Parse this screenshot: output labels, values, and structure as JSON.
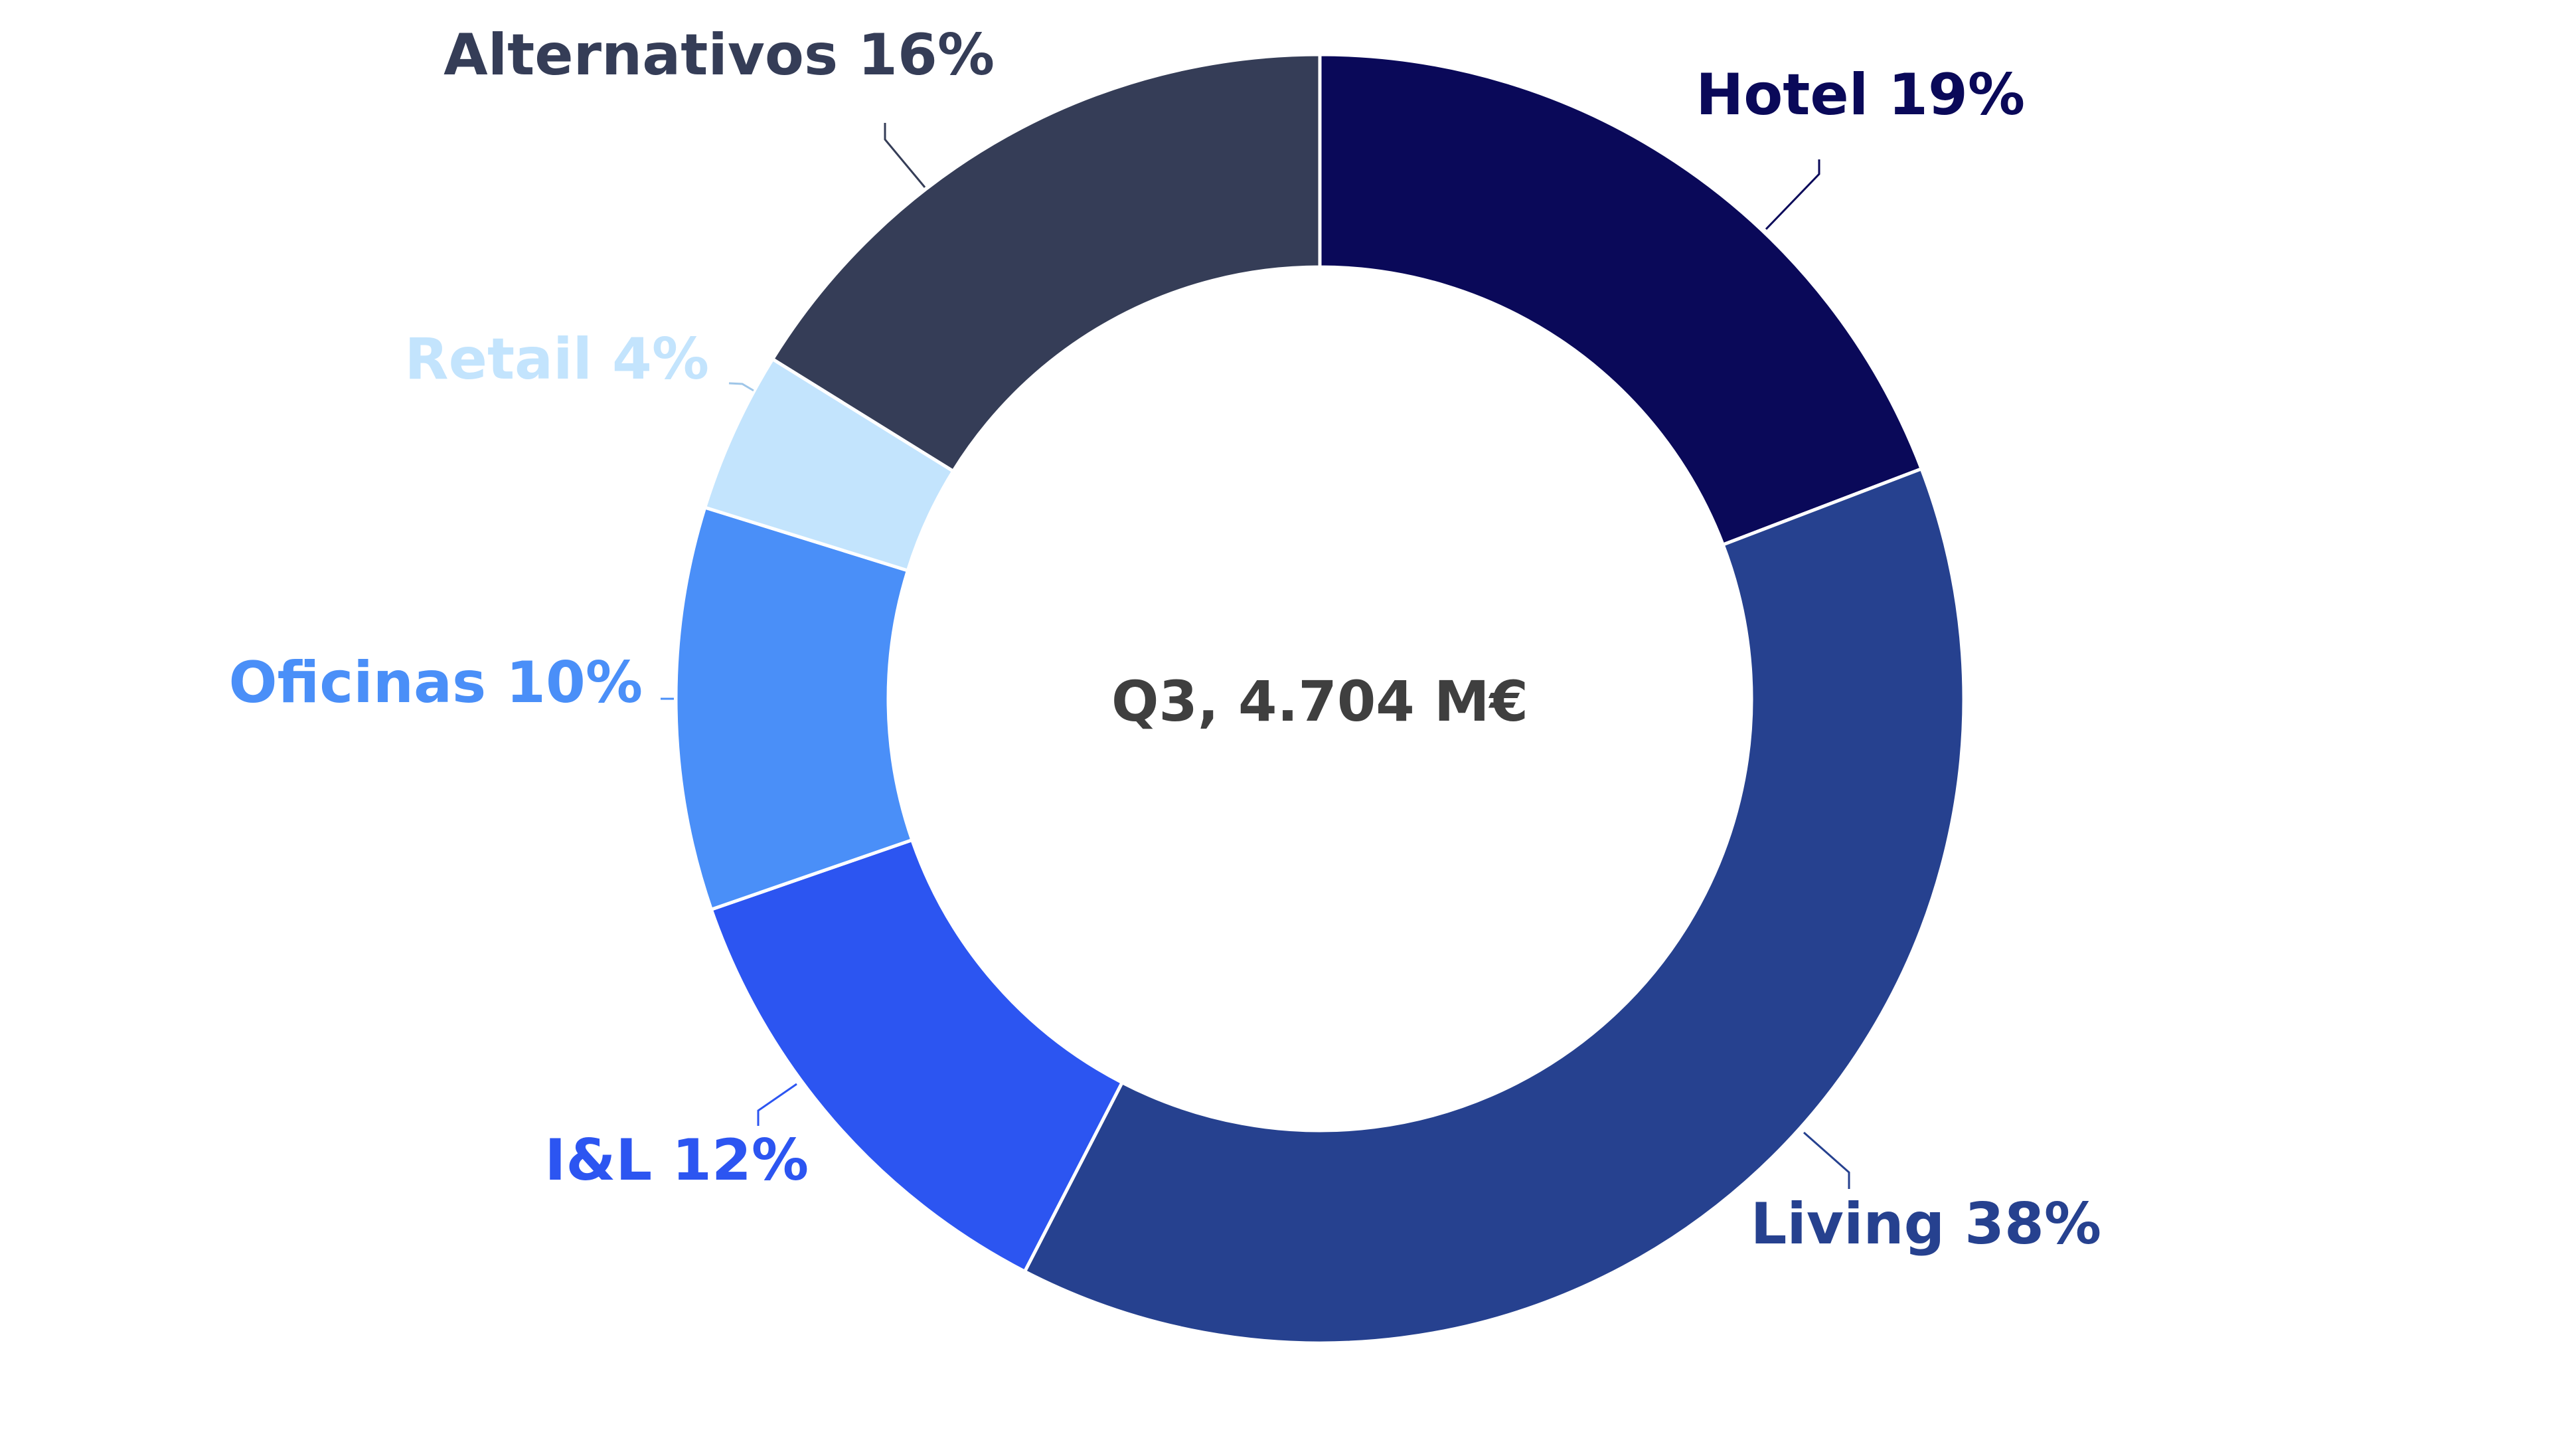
{
  "chart_data": {
    "type": "pie",
    "variant": "donut",
    "center_label": "Q3, 4.704 M€",
    "unit": "%",
    "slices": [
      {
        "label": "Hotel",
        "value": 19,
        "display": "Hotel 19%",
        "color": "#0a0959"
      },
      {
        "label": "Living",
        "value": 38,
        "display": "Living 38%",
        "color": "#26418f"
      },
      {
        "label": "I&L",
        "value": 12,
        "display": "I&L 12%",
        "color": "#2c55f1"
      },
      {
        "label": "Oficinas",
        "value": 10,
        "display": "Oficinas 10%",
        "color": "#4a8ff8"
      },
      {
        "label": "Retail",
        "value": 4,
        "display": "Retail 4%",
        "color": "#c3e4fd"
      },
      {
        "label": "Alternativos",
        "value": 16,
        "display": "Alternativos 16%",
        "color": "#353d57"
      }
    ]
  }
}
